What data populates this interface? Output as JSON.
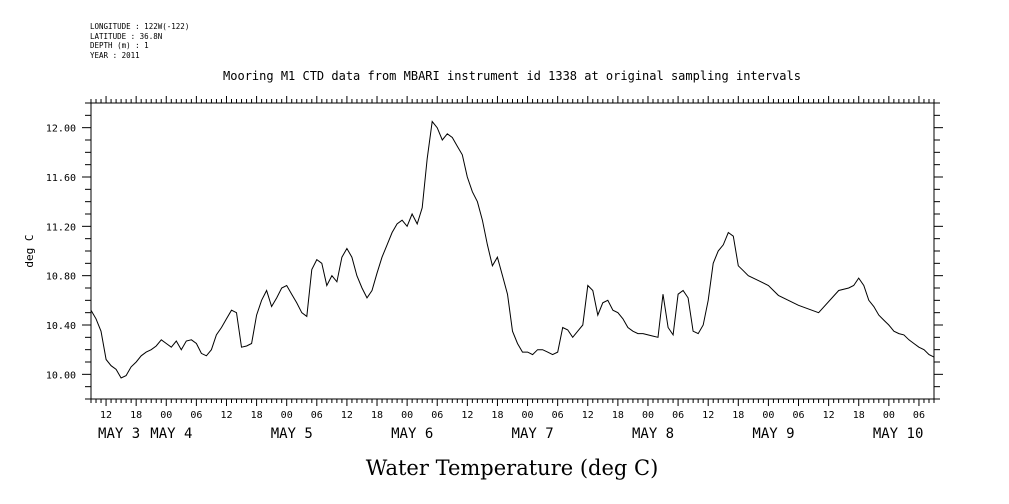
{
  "header": {
    "longitude": "LONGITUDE : 122W(-122)",
    "latitude": "LATITUDE : 36.8N",
    "depth": "DEPTH (m) : 1",
    "year": "YEAR : 2011"
  },
  "chart_data": {
    "type": "line",
    "title": "Mooring M1 CTD data from MBARI instrument id 1338 at original sampling intervals",
    "xlabel": "Water Temperature (deg C)",
    "ylabel": "deg C",
    "ylim": [
      9.8,
      12.2
    ],
    "xlim_hours": [
      9,
      177
    ],
    "grid": false,
    "y_ticks": [
      "10.00",
      "10.40",
      "10.80",
      "11.20",
      "11.60",
      "12.00"
    ],
    "hour_tick_labels": [
      "12",
      "18",
      "00",
      "06",
      "12",
      "18",
      "00",
      "06",
      "12",
      "18",
      "00",
      "06",
      "12",
      "18",
      "00",
      "06",
      "12",
      "18",
      "00",
      "06",
      "12",
      "18",
      "00",
      "06",
      "12",
      "18",
      "00",
      "06"
    ],
    "day_labels": [
      "MAY 3",
      "MAY 4",
      "MAY 5",
      "MAY 6",
      "MAY 7",
      "MAY 8",
      "MAY 9",
      "MAY 10"
    ],
    "series": [
      {
        "x_hours_since_may3_0000": [
          9,
          10,
          11,
          12,
          13,
          14,
          15,
          16,
          17,
          18,
          19,
          20,
          21,
          22,
          23,
          24,
          25,
          26,
          27,
          28,
          29,
          30,
          31,
          32,
          33,
          34,
          35,
          36,
          37,
          38,
          39,
          40,
          41,
          42,
          43,
          44,
          45,
          46,
          47,
          48,
          49,
          50,
          51,
          52,
          53,
          54,
          55,
          56,
          57,
          58,
          59,
          60,
          61,
          62,
          63,
          64,
          65,
          66,
          67,
          68,
          69,
          70,
          71,
          72,
          73,
          74,
          75,
          76,
          77,
          78,
          79,
          80,
          81,
          82,
          83,
          84,
          85,
          86,
          87,
          88,
          89,
          90,
          91,
          92,
          93,
          94,
          95,
          96,
          97,
          98,
          99,
          100,
          101,
          102,
          103,
          104,
          105,
          106,
          107,
          108,
          109,
          110,
          111,
          112,
          113,
          114,
          115,
          116,
          117,
          118,
          119,
          120,
          121,
          122,
          123,
          124,
          125,
          126,
          127,
          128,
          129,
          130,
          131,
          132,
          133,
          134,
          135,
          136,
          137,
          138,
          139,
          140,
          142,
          144,
          146,
          150,
          154,
          158,
          160,
          161,
          162,
          163,
          164,
          165,
          166,
          167,
          168,
          169,
          170,
          171,
          172,
          173,
          174,
          175,
          176,
          177
        ],
        "y": [
          10.52,
          10.45,
          10.35,
          10.12,
          10.07,
          10.04,
          9.97,
          9.99,
          10.06,
          10.1,
          10.15,
          10.18,
          10.2,
          10.23,
          10.28,
          10.25,
          10.22,
          10.27,
          10.2,
          10.27,
          10.28,
          10.25,
          10.17,
          10.15,
          10.2,
          10.32,
          10.38,
          10.45,
          10.52,
          10.5,
          10.22,
          10.23,
          10.25,
          10.48,
          10.6,
          10.68,
          10.55,
          10.62,
          10.7,
          10.72,
          10.65,
          10.58,
          10.5,
          10.47,
          10.85,
          10.93,
          10.9,
          10.72,
          10.8,
          10.75,
          10.95,
          11.02,
          10.95,
          10.8,
          10.7,
          10.62,
          10.68,
          10.82,
          10.95,
          11.05,
          11.15,
          11.22,
          11.25,
          11.2,
          11.3,
          11.22,
          11.35,
          11.75,
          12.05,
          12.0,
          11.9,
          11.95,
          11.92,
          11.85,
          11.78,
          11.6,
          11.48,
          11.4,
          11.25,
          11.05,
          10.88,
          10.95,
          10.8,
          10.65,
          10.35,
          10.25,
          10.18,
          10.18,
          10.16,
          10.2,
          10.2,
          10.18,
          10.16,
          10.18,
          10.38,
          10.36,
          10.3,
          10.35,
          10.4,
          10.72,
          10.68,
          10.48,
          10.58,
          10.6,
          10.52,
          10.5,
          10.45,
          10.38,
          10.35,
          10.33,
          10.33,
          10.32,
          10.31,
          10.3,
          10.65,
          10.38,
          10.32,
          10.65,
          10.68,
          10.62,
          10.35,
          10.33,
          10.4,
          10.6,
          10.9,
          11.0,
          11.05,
          11.15,
          11.12,
          10.88,
          10.84,
          10.8,
          10.76,
          10.72,
          10.64,
          10.56,
          10.5,
          10.68,
          10.7,
          10.72,
          10.78,
          10.72,
          10.6,
          10.55,
          10.48,
          10.44,
          10.4,
          10.35,
          10.33,
          10.32,
          10.28,
          10.25,
          10.22,
          10.2,
          10.16,
          10.14
        ]
      }
    ]
  }
}
